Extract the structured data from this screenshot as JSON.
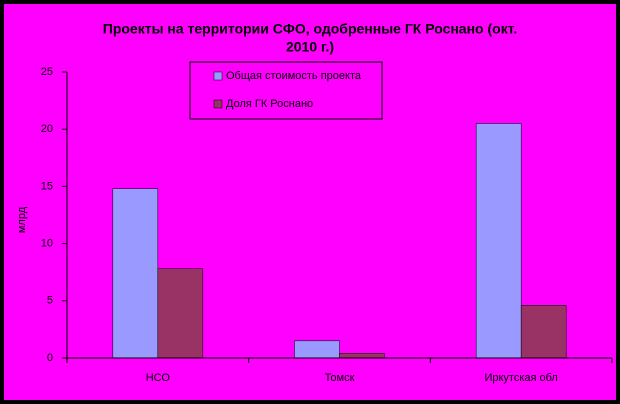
{
  "chart_data": {
    "type": "bar",
    "title": [
      "Проекты на территории СФО, одобренные ГК Роснано (окт.",
      "2010 г.)"
    ],
    "y_label": "млрд",
    "categories": [
      "НСО",
      "Томск",
      "Иркутская обл"
    ],
    "series": [
      {
        "name": "Общая стоимость проекта",
        "color": "#9999ff",
        "values": [
          14.8,
          1.5,
          20.5
        ]
      },
      {
        "name": "Доля ГК Роснано",
        "color": "#993366",
        "values": [
          7.8,
          0.4,
          4.6
        ]
      }
    ],
    "ylim": [
      0,
      25
    ],
    "yticks": [
      0,
      5,
      10,
      15,
      20,
      25
    ],
    "grid": false
  }
}
